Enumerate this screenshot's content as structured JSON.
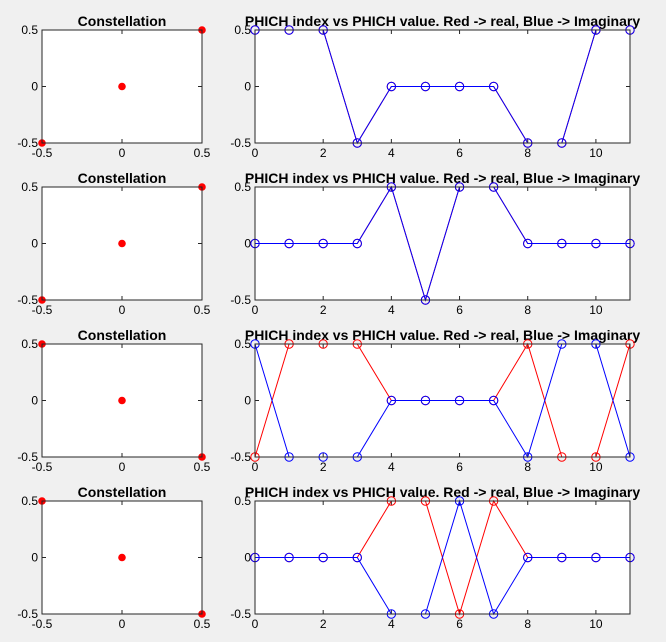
{
  "window": {
    "background": "#f0f0f0"
  },
  "colors": {
    "real": "#ff0000",
    "imag": "#0000ff",
    "constellation_marker": "#ff0000",
    "axes": "#262626"
  },
  "chart_data": [
    {
      "type": "scatter",
      "title": "Constellation",
      "xlim": [
        -0.5,
        0.5
      ],
      "ylim": [
        -0.5,
        0.5
      ],
      "xticks": [
        "-0.5",
        "0",
        "0.5"
      ],
      "yticks": [
        "-0.5",
        "0",
        "0.5"
      ],
      "points": [
        {
          "x": 0.5,
          "y": 0.5
        },
        {
          "x": 0,
          "y": 0
        },
        {
          "x": -0.5,
          "y": -0.5
        }
      ],
      "marker": "filled-circle",
      "color": "#ff0000",
      "grid": false
    },
    {
      "type": "line",
      "title": "PHICH index vs PHICH value. Red -> real, Blue -> Imaginary",
      "xlim": [
        0,
        11
      ],
      "ylim": [
        -0.5,
        0.5
      ],
      "xticks": [
        "0",
        "2",
        "4",
        "6",
        "8",
        "10"
      ],
      "yticks": [
        "-0.5",
        "0",
        "0.5"
      ],
      "x": [
        0,
        1,
        2,
        3,
        4,
        5,
        6,
        7,
        8,
        9,
        10,
        11
      ],
      "series": [
        {
          "color": "#ff0000",
          "marker": "open-circle",
          "values": [
            0.5,
            0.5,
            0.5,
            -0.5,
            0,
            0,
            0,
            0,
            -0.5,
            -0.5,
            0.5,
            0.5
          ]
        },
        {
          "color": "#0000ff",
          "marker": "open-circle",
          "values": [
            0.5,
            0.5,
            0.5,
            -0.5,
            0,
            0,
            0,
            0,
            -0.5,
            -0.5,
            0.5,
            0.5
          ]
        }
      ],
      "grid": false
    },
    {
      "type": "scatter",
      "title": "Constellation",
      "xlim": [
        -0.5,
        0.5
      ],
      "ylim": [
        -0.5,
        0.5
      ],
      "xticks": [
        "-0.5",
        "0",
        "0.5"
      ],
      "yticks": [
        "-0.5",
        "0",
        "0.5"
      ],
      "points": [
        {
          "x": 0.5,
          "y": 0.5
        },
        {
          "x": 0,
          "y": 0
        },
        {
          "x": -0.5,
          "y": -0.5
        }
      ],
      "marker": "filled-circle",
      "color": "#ff0000",
      "grid": false
    },
    {
      "type": "line",
      "title": "PHICH index vs PHICH value. Red -> real, Blue -> Imaginary",
      "xlim": [
        0,
        11
      ],
      "ylim": [
        -0.5,
        0.5
      ],
      "xticks": [
        "0",
        "2",
        "4",
        "6",
        "8",
        "10"
      ],
      "yticks": [
        "-0.5",
        "0",
        "0.5"
      ],
      "x": [
        0,
        1,
        2,
        3,
        4,
        5,
        6,
        7,
        8,
        9,
        10,
        11
      ],
      "series": [
        {
          "color": "#ff0000",
          "marker": "open-circle",
          "values": [
            0,
            0,
            0,
            0,
            0.5,
            -0.5,
            0.5,
            0.5,
            0,
            0,
            0,
            0
          ]
        },
        {
          "color": "#0000ff",
          "marker": "open-circle",
          "values": [
            0,
            0,
            0,
            0,
            0.5,
            -0.5,
            0.5,
            0.5,
            0,
            0,
            0,
            0
          ]
        }
      ],
      "grid": false
    },
    {
      "type": "scatter",
      "title": "Constellation",
      "xlim": [
        -0.5,
        0.5
      ],
      "ylim": [
        -0.5,
        0.5
      ],
      "xticks": [
        "-0.5",
        "0",
        "0.5"
      ],
      "yticks": [
        "-0.5",
        "0",
        "0.5"
      ],
      "points": [
        {
          "x": -0.5,
          "y": 0.5
        },
        {
          "x": 0,
          "y": 0
        },
        {
          "x": 0.5,
          "y": -0.5
        }
      ],
      "marker": "filled-circle",
      "color": "#ff0000",
      "grid": false
    },
    {
      "type": "line",
      "title": "PHICH index vs PHICH value. Red -> real, Blue -> Imaginary",
      "xlim": [
        0,
        11
      ],
      "ylim": [
        -0.5,
        0.5
      ],
      "xticks": [
        "0",
        "2",
        "4",
        "6",
        "8",
        "10"
      ],
      "yticks": [
        "-0.5",
        "0",
        "0.5"
      ],
      "x": [
        0,
        1,
        2,
        3,
        4,
        5,
        6,
        7,
        8,
        9,
        10,
        11
      ],
      "series": [
        {
          "color": "#ff0000",
          "marker": "open-circle",
          "values": [
            -0.5,
            0.5,
            0.5,
            0.5,
            0,
            0,
            0,
            0,
            0.5,
            -0.5,
            -0.5,
            0.5
          ]
        },
        {
          "color": "#0000ff",
          "marker": "open-circle",
          "values": [
            0.5,
            -0.5,
            -0.5,
            -0.5,
            0,
            0,
            0,
            0,
            -0.5,
            0.5,
            0.5,
            -0.5
          ]
        }
      ],
      "grid": false
    },
    {
      "type": "scatter",
      "title": "Constellation",
      "xlim": [
        -0.5,
        0.5
      ],
      "ylim": [
        -0.5,
        0.5
      ],
      "xticks": [
        "-0.5",
        "0",
        "0.5"
      ],
      "yticks": [
        "-0.5",
        "0",
        "0.5"
      ],
      "points": [
        {
          "x": -0.5,
          "y": 0.5
        },
        {
          "x": 0,
          "y": 0
        },
        {
          "x": 0.5,
          "y": -0.5
        }
      ],
      "marker": "filled-circle",
      "color": "#ff0000",
      "grid": false
    },
    {
      "type": "line",
      "title": "PHICH index vs PHICH value. Red -> real, Blue -> Imaginary",
      "xlim": [
        0,
        11
      ],
      "ylim": [
        -0.5,
        0.5
      ],
      "xticks": [
        "0",
        "2",
        "4",
        "6",
        "8",
        "10"
      ],
      "yticks": [
        "-0.5",
        "0",
        "0.5"
      ],
      "x": [
        0,
        1,
        2,
        3,
        4,
        5,
        6,
        7,
        8,
        9,
        10,
        11
      ],
      "series": [
        {
          "color": "#ff0000",
          "marker": "open-circle",
          "values": [
            0,
            0,
            0,
            0,
            0.5,
            0.5,
            -0.5,
            0.5,
            0,
            0,
            0,
            0
          ]
        },
        {
          "color": "#0000ff",
          "marker": "open-circle",
          "values": [
            0,
            0,
            0,
            0,
            -0.5,
            -0.5,
            0.5,
            -0.5,
            0,
            0,
            0,
            0
          ]
        }
      ],
      "grid": false
    }
  ]
}
